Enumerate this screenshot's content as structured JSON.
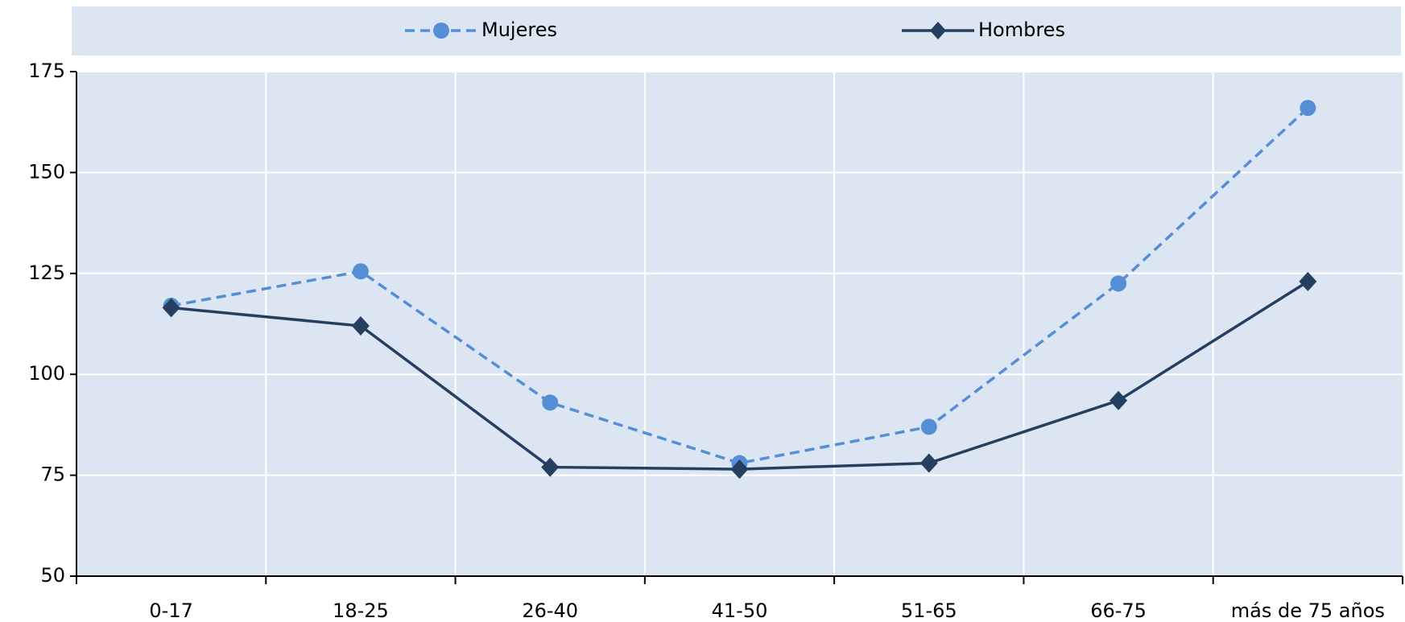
{
  "chart_data": {
    "type": "line",
    "categories": [
      "0-17",
      "18-25",
      "26-40",
      "41-50",
      "51-65",
      "66-75",
      "más de 75 años"
    ],
    "series": [
      {
        "name": "Mujeres",
        "color": "#558ed5",
        "dash": true,
        "marker": "circle",
        "values": [
          117,
          125.5,
          93,
          78,
          87,
          122.5,
          166
        ]
      },
      {
        "name": "Hombres",
        "color": "#243f60",
        "dash": false,
        "marker": "diamond",
        "values": [
          116.5,
          112,
          77,
          76.5,
          78,
          93.5,
          123
        ]
      }
    ],
    "ylim": [
      50,
      175
    ],
    "yticks": [
      50,
      75,
      100,
      125,
      150,
      175
    ],
    "grid": true,
    "legend": "top"
  }
}
